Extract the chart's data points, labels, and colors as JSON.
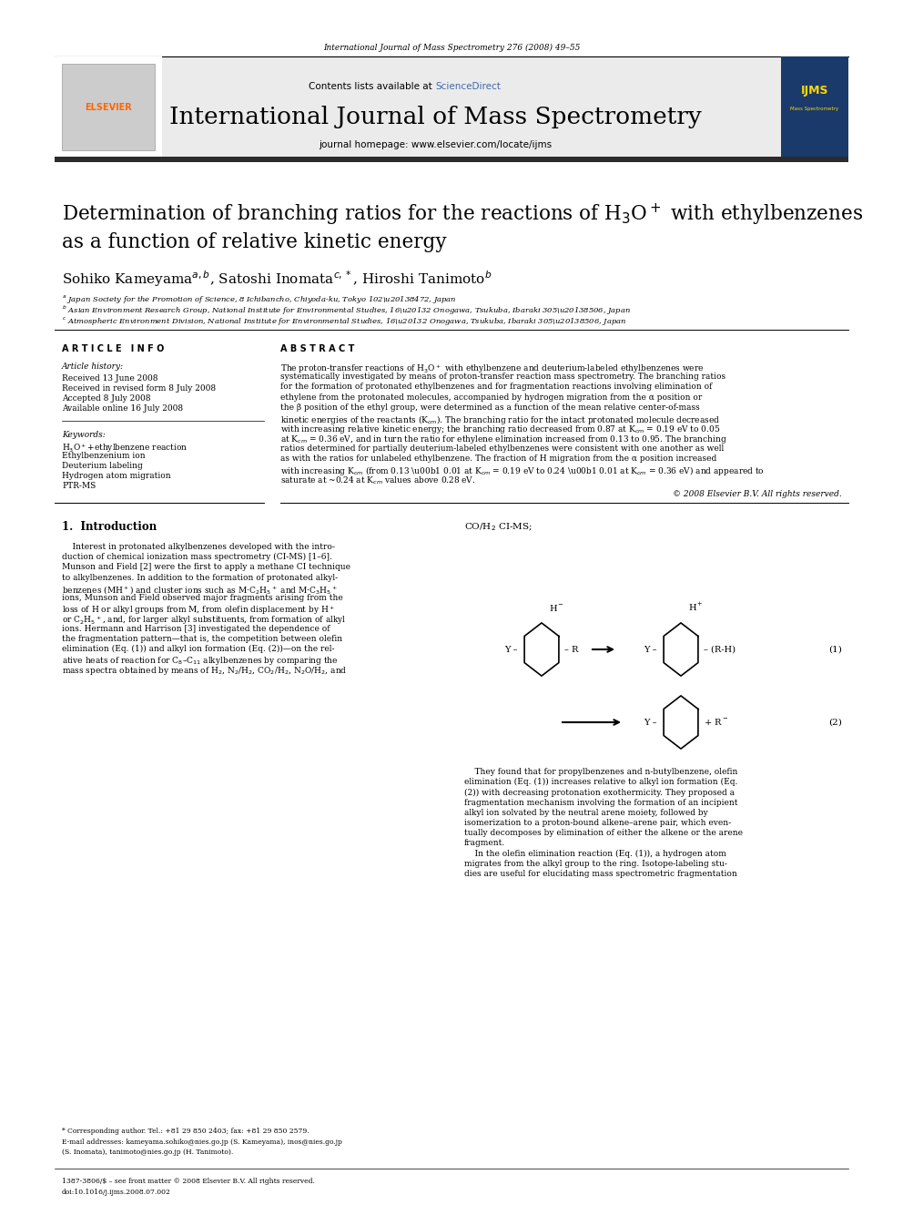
{
  "page_width": 9.92,
  "page_height": 13.23,
  "dpi": 100,
  "journal_info": "International Journal of Mass Spectrometry 276 (2008) 49–55",
  "sciencedirect_color": "#4169AA",
  "elsevier_color": "#FF6600",
  "dark_bar_color": "#2B2B2B",
  "background_header": "#EBEBEB",
  "issn_line": "1387-3806/$ – see front matter © 2008 Elsevier B.V. All rights reserved.",
  "doi_line": "doi:10.1016/j.ijms.2008.07.002"
}
